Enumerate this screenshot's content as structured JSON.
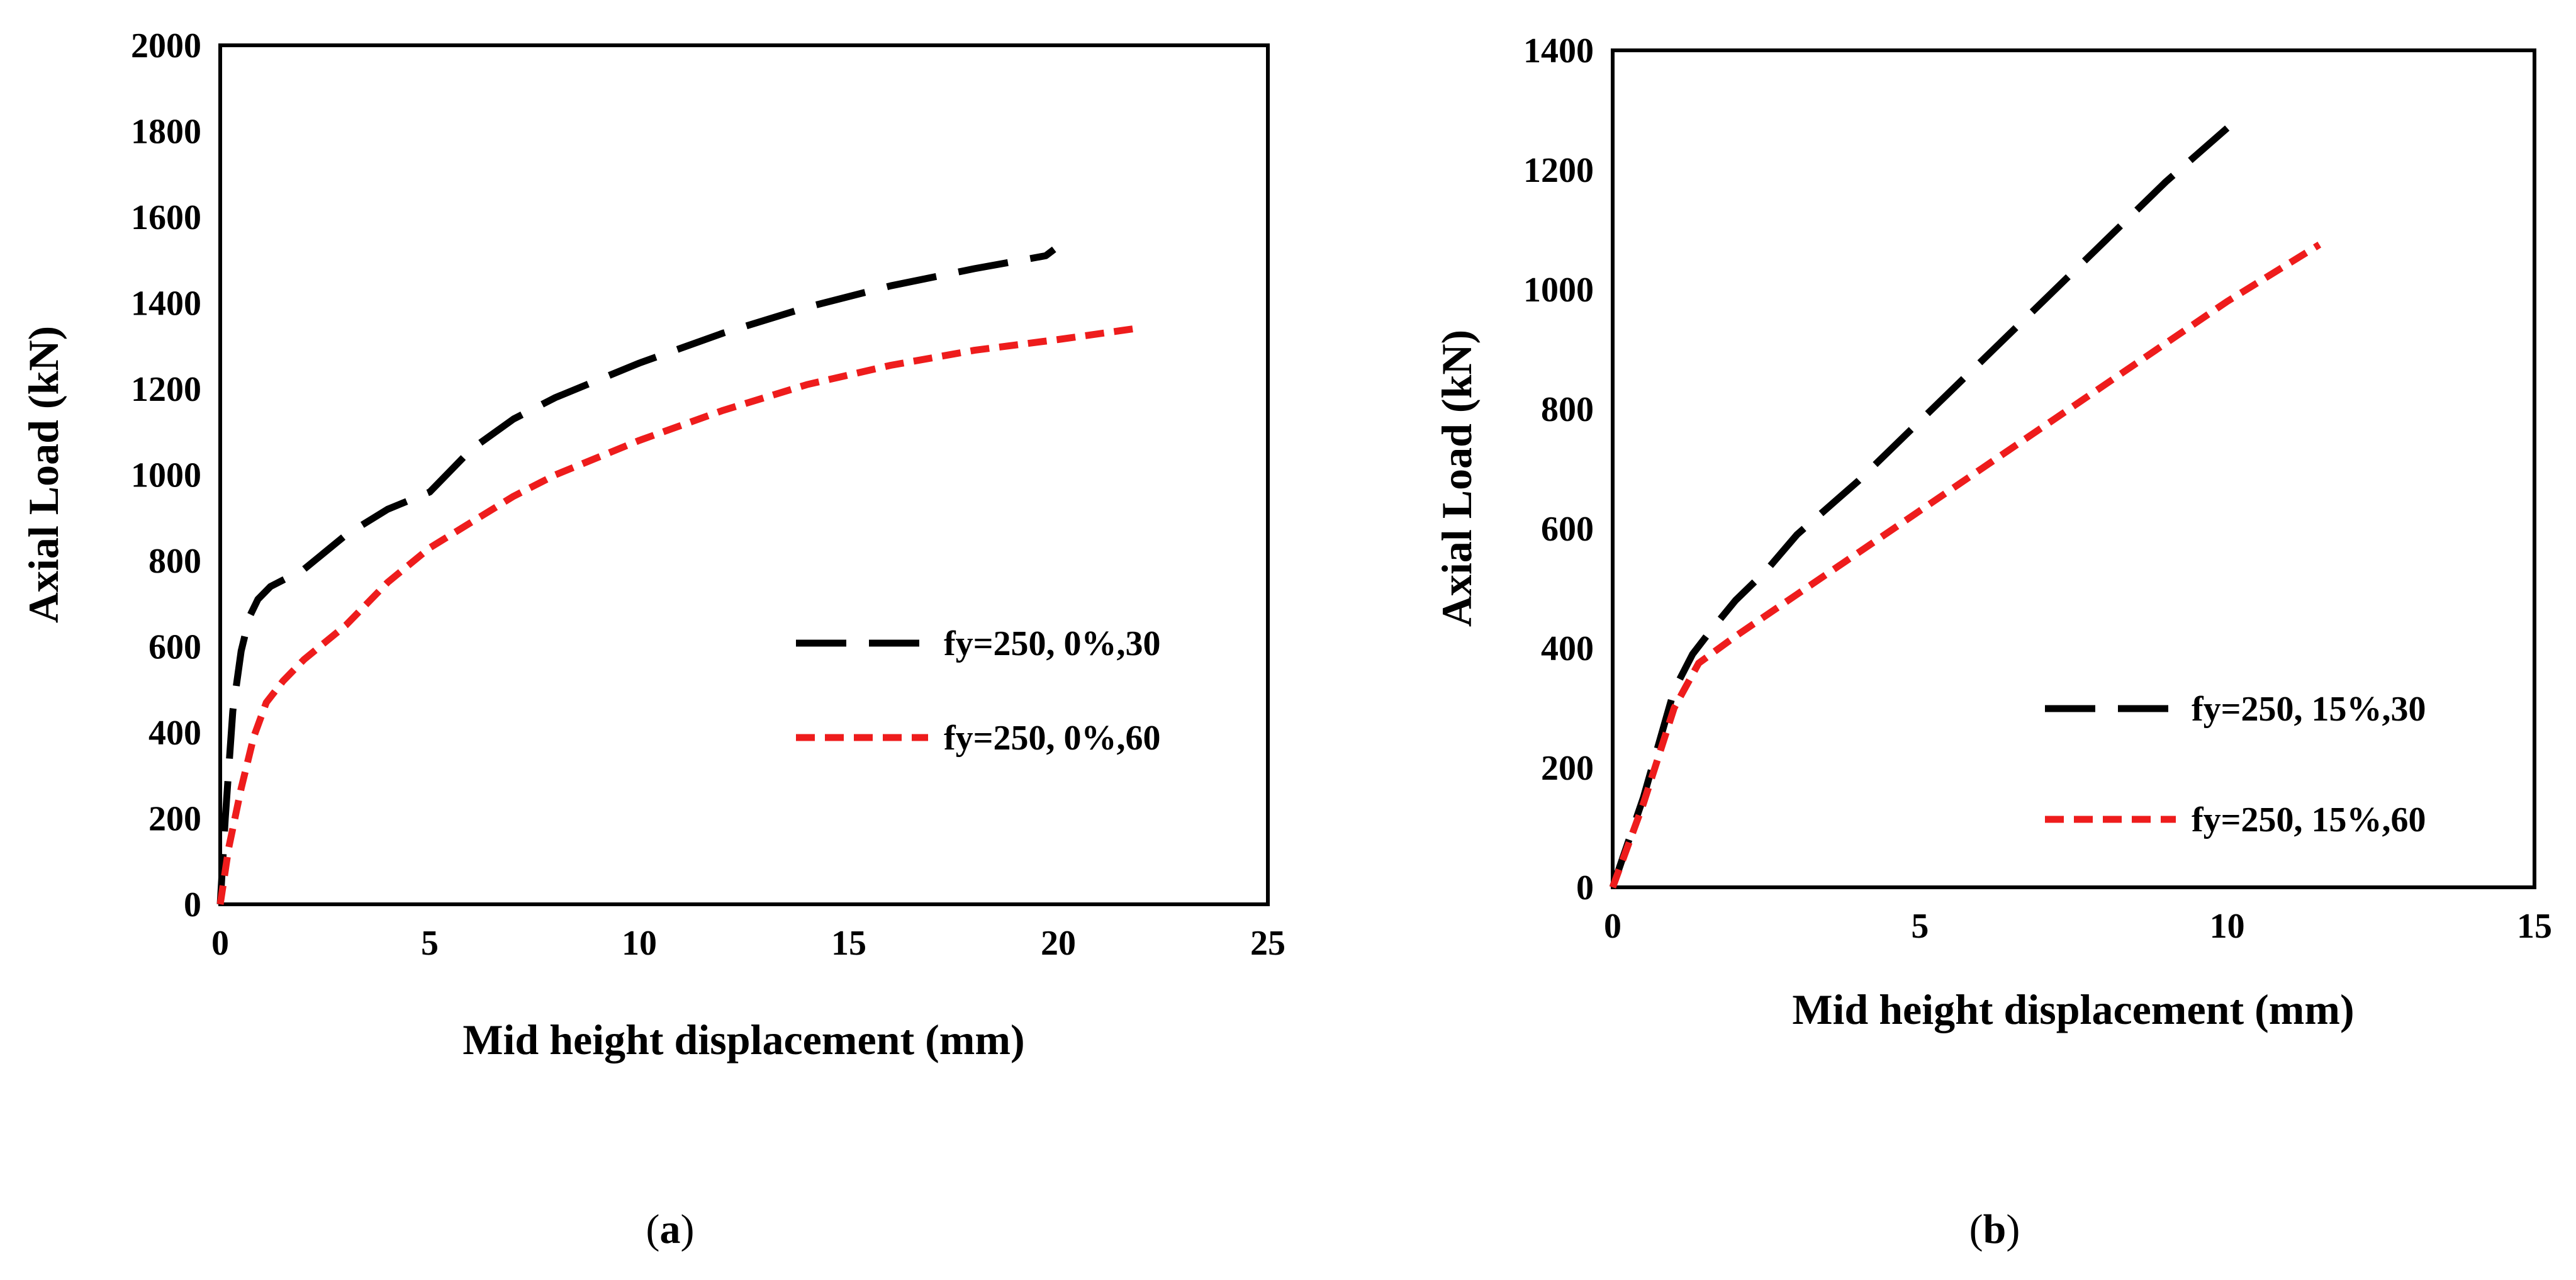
{
  "colors": {
    "series1": "#000000",
    "series2": "#ee1c1c",
    "frame": "#000000"
  },
  "chart_data": [
    {
      "type": "line",
      "panel_label": "(a)",
      "panel_letter": "a",
      "xlabel": "Mid height displacement (mm)",
      "ylabel": "Axial Load (kN)",
      "xlim": [
        0,
        25
      ],
      "ylim": [
        0,
        2000
      ],
      "xticks": [
        0,
        5,
        10,
        15,
        20,
        25
      ],
      "yticks": [
        0,
        200,
        400,
        600,
        800,
        1000,
        1200,
        1400,
        1600,
        1800,
        2000
      ],
      "grid": false,
      "legend_position": "right-middle",
      "series": [
        {
          "name": "fy=250, 0%,30",
          "style": "long-dash",
          "color": "#000000",
          "x": [
            0,
            0.12,
            0.3,
            0.5,
            0.7,
            0.9,
            1.2,
            2.0,
            3.0,
            4.0,
            5.0,
            6.0,
            7.0,
            8.0,
            10.0,
            12.0,
            14.0,
            16.0,
            18.0,
            19.7,
            19.9
          ],
          "y": [
            0,
            200,
            450,
            590,
            670,
            710,
            740,
            780,
            860,
            920,
            960,
            1060,
            1130,
            1180,
            1260,
            1330,
            1390,
            1440,
            1480,
            1510,
            1525
          ]
        },
        {
          "name": "fy=250, 0%,60",
          "style": "short-dash",
          "color": "#ee1c1c",
          "x": [
            0,
            0.2,
            0.5,
            0.8,
            1.1,
            1.5,
            2.0,
            3.0,
            4.0,
            5.0,
            6.0,
            7.0,
            8.0,
            10.0,
            12.0,
            14.0,
            16.0,
            18.0,
            20.0,
            21.8
          ],
          "y": [
            0,
            130,
            270,
            390,
            470,
            520,
            570,
            650,
            750,
            830,
            890,
            950,
            1000,
            1080,
            1150,
            1210,
            1255,
            1290,
            1315,
            1340
          ]
        }
      ]
    },
    {
      "type": "line",
      "panel_label": "(b)",
      "panel_letter": "b",
      "xlabel": "Mid height displacement (mm)",
      "ylabel": "Axial Load (kN)",
      "xlim": [
        0,
        15
      ],
      "ylim": [
        0,
        1400
      ],
      "xticks": [
        0,
        5,
        10,
        15
      ],
      "yticks": [
        0,
        200,
        400,
        600,
        800,
        1000,
        1200,
        1400
      ],
      "grid": false,
      "legend_position": "bottom-right",
      "series": [
        {
          "name": "fy=250, 15%,30",
          "style": "long-dash",
          "color": "#000000",
          "x": [
            0,
            0.5,
            1.0,
            1.3,
            1.6,
            2.0,
            2.5,
            3.0,
            4.0,
            5.0,
            6.0,
            7.0,
            8.0,
            9.0,
            10.0
          ],
          "y": [
            0,
            150,
            330,
            390,
            430,
            480,
            530,
            590,
            680,
            780,
            880,
            980,
            1080,
            1180,
            1270
          ]
        },
        {
          "name": "fy=250, 15%,60",
          "style": "short-dash",
          "color": "#ee1c1c",
          "x": [
            0,
            0.5,
            1.0,
            1.4,
            2.0,
            3.0,
            4.0,
            5.0,
            6.0,
            7.0,
            8.0,
            9.0,
            10.0,
            11.5
          ],
          "y": [
            0,
            140,
            300,
            375,
            420,
            490,
            560,
            630,
            700,
            770,
            840,
            910,
            980,
            1075
          ]
        }
      ]
    }
  ]
}
